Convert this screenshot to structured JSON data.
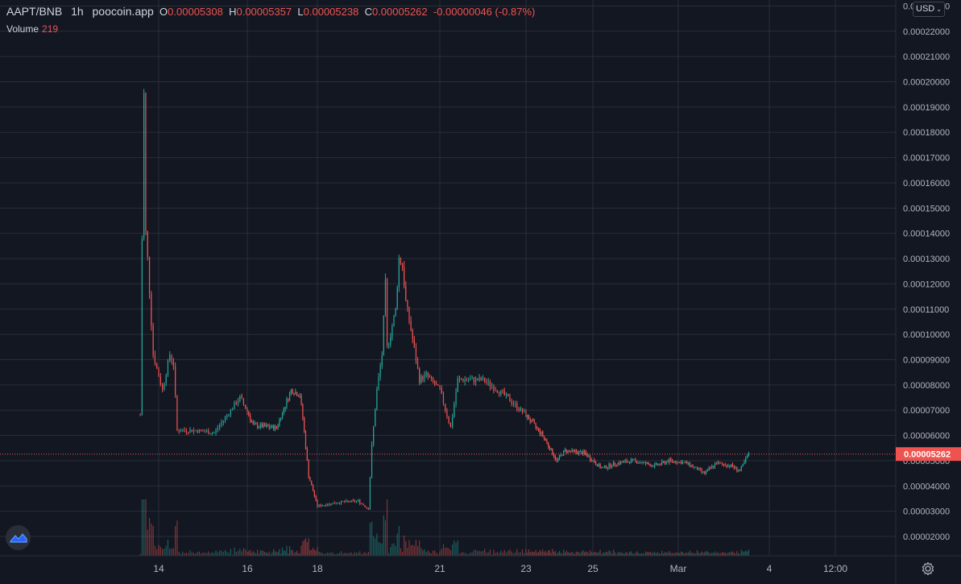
{
  "header": {
    "symbol": "AAPT/BNB",
    "interval": "1h",
    "source": "poocoin.app",
    "o_label": "O",
    "o_value": "0.00005308",
    "h_label": "H",
    "h_value": "0.00005357",
    "l_label": "L",
    "l_value": "0.00005238",
    "c_label": "C",
    "c_value": "0.00005262",
    "change": "-0.00000046 (-0.87%)"
  },
  "volume": {
    "label": "Volume",
    "value": "219"
  },
  "currency_button": "USD",
  "colors": {
    "up": "#26a69a",
    "down": "#ef5350",
    "background": "#131722",
    "grid": "#2a2e39",
    "text": "#b2b5be"
  },
  "icons": {
    "logo": "tradingview-logo-icon",
    "settings": "gear-icon",
    "dropdown": "chevron-down-icon"
  },
  "chart_data": {
    "type": "candlestick",
    "title": "AAPT/BNB 1h poocoin.app",
    "last_price": 5.262e-05,
    "last_price_label": "0.00005262",
    "ylim": [
      1.2e-05,
      0.000231
    ],
    "y_ticks": [
      "0.00002000",
      "0.00003000",
      "0.00004000",
      "0.00005000",
      "0.00006000",
      "0.00007000",
      "0.00008000",
      "0.00009000",
      "0.00010000",
      "0.00011000",
      "0.00012000",
      "0.00013000",
      "0.00014000",
      "0.00015000",
      "0.00016000",
      "0.00017000",
      "0.00018000",
      "0.00019000",
      "0.00020000",
      "0.00021000",
      "0.00022000",
      "0.00023000"
    ],
    "x_tick_labels": [
      "14",
      "16",
      "18",
      "21",
      "23",
      "25",
      "Mar",
      "4",
      "12:00"
    ],
    "price_path": [
      {
        "t": "Feb 12 14:00",
        "p": 6.8e-05
      },
      {
        "t": "Feb 12 15:00",
        "p": 0.000138
      },
      {
        "t": "Feb 12 16:00",
        "p": 0.000195
      },
      {
        "t": "Feb 12 17:00",
        "p": 0.00014
      },
      {
        "t": "Feb 12 18:00",
        "p": 0.00013
      },
      {
        "t": "Feb 12 21:00",
        "p": 9.2e-05
      },
      {
        "t": "Feb 13 02:00",
        "p": 7.8e-05
      },
      {
        "t": "Feb 13 06:00",
        "p": 9.2e-05
      },
      {
        "t": "Feb 13 08:00",
        "p": 8.8e-05
      },
      {
        "t": "Feb 13 10:00",
        "p": 6.2e-05
      },
      {
        "t": "Feb 13 20:00",
        "p": 6.2e-05
      },
      {
        "t": "Feb 14 06:00",
        "p": 6.1e-05
      },
      {
        "t": "Feb 14 20:00",
        "p": 7.5e-05
      },
      {
        "t": "Feb 15 04:00",
        "p": 6.4e-05
      },
      {
        "t": "Feb 15 20:00",
        "p": 6.3e-05
      },
      {
        "t": "Feb 16 06:00",
        "p": 7.8e-05
      },
      {
        "t": "Feb 16 12:00",
        "p": 7.6e-05
      },
      {
        "t": "Feb 16 14:00",
        "p": 6.7e-05
      },
      {
        "t": "Feb 16 18:00",
        "p": 4.4e-05
      },
      {
        "t": "Feb 17 00:00",
        "p": 3.2e-05
      },
      {
        "t": "Feb 17 12:00",
        "p": 3.35e-05
      },
      {
        "t": "Feb 18 00:00",
        "p": 3.4e-05
      },
      {
        "t": "Feb 18 06:00",
        "p": 3.1e-05
      },
      {
        "t": "Feb 18 08:00",
        "p": 5.6e-05
      },
      {
        "t": "Feb 18 11:00",
        "p": 7.8e-05
      },
      {
        "t": "Feb 18 14:00",
        "p": 9.2e-05
      },
      {
        "t": "Feb 18 16:00",
        "p": 0.00012
      },
      {
        "t": "Feb 18 17:00",
        "p": 9.5e-05
      },
      {
        "t": "Feb 18 19:00",
        "p": 0.0001
      },
      {
        "t": "Feb 18 22:00",
        "p": 0.00011
      },
      {
        "t": "Feb 19 00:00",
        "p": 0.00013
      },
      {
        "t": "Feb 19 02:00",
        "p": 0.000127
      },
      {
        "t": "Feb 19 04:00",
        "p": 0.000113
      },
      {
        "t": "Feb 19 08:00",
        "p": 9.8e-05
      },
      {
        "t": "Feb 19 12:00",
        "p": 8.2e-05
      },
      {
        "t": "Feb 19 16:00",
        "p": 8.4e-05
      },
      {
        "t": "Feb 20 00:00",
        "p": 7.8e-05
      },
      {
        "t": "Feb 20 06:00",
        "p": 6.3e-05
      },
      {
        "t": "Feb 20 10:00",
        "p": 8.2e-05
      },
      {
        "t": "Feb 21 00:00",
        "p": 8.2e-05
      },
      {
        "t": "Feb 21 12:00",
        "p": 7.6e-05
      },
      {
        "t": "Feb 22 00:00",
        "p": 6.8e-05
      },
      {
        "t": "Feb 22 12:00",
        "p": 6e-05
      },
      {
        "t": "Feb 22 22:00",
        "p": 5e-05
      },
      {
        "t": "Feb 23 04:00",
        "p": 5.4e-05
      },
      {
        "t": "Feb 23 18:00",
        "p": 5.3e-05
      },
      {
        "t": "Feb 24 06:00",
        "p": 4.7e-05
      },
      {
        "t": "Feb 24 16:00",
        "p": 4.9e-05
      },
      {
        "t": "Feb 25 04:00",
        "p": 5e-05
      },
      {
        "t": "Feb 25 18:00",
        "p": 4.8e-05
      },
      {
        "t": "Feb 26 04:00",
        "p": 5e-05
      },
      {
        "t": "Feb 26 16:00",
        "p": 4.9e-05
      },
      {
        "t": "Feb 27 04:00",
        "p": 4.5e-05
      },
      {
        "t": "Feb 27 12:00",
        "p": 4.9e-05
      },
      {
        "t": "Feb 27 22:00",
        "p": 4.8e-05
      },
      {
        "t": "Feb 28 04:00",
        "p": 4.6e-05
      },
      {
        "t": "Feb 28 10:00",
        "p": 5.26e-05
      }
    ]
  }
}
